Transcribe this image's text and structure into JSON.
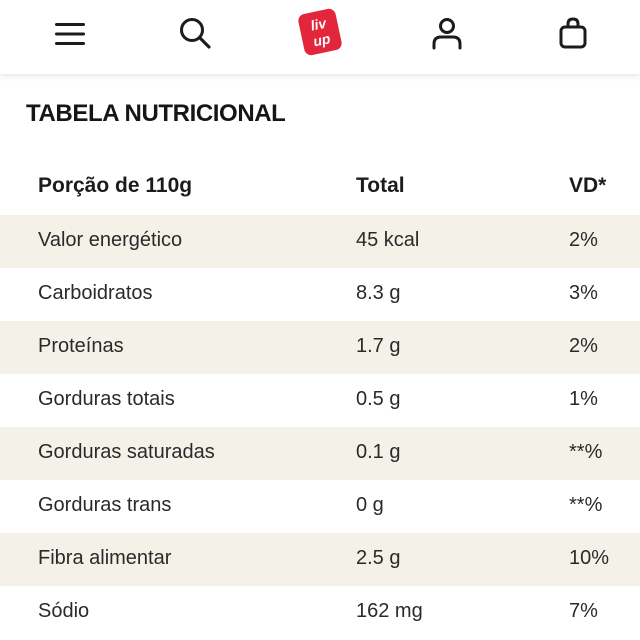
{
  "header": {
    "brand": "Liv Up",
    "brand_color": "#e4263c",
    "icons": [
      "hamburger-menu-icon",
      "search-icon",
      "account-icon",
      "shopping-bag-icon"
    ]
  },
  "section_title": "TABELA NUTRICIONAL",
  "table": {
    "columns": [
      "Porção de 110g",
      "Total",
      "VD*"
    ],
    "rows": [
      {
        "name": "Valor energético",
        "total": "45 kcal",
        "vd": "2%"
      },
      {
        "name": "Carboidratos",
        "total": "8.3 g",
        "vd": "3%"
      },
      {
        "name": "Proteínas",
        "total": "1.7 g",
        "vd": "2%"
      },
      {
        "name": "Gorduras totais",
        "total": "0.5 g",
        "vd": "1%"
      },
      {
        "name": "Gorduras saturadas",
        "total": "0.1 g",
        "vd": "**%"
      },
      {
        "name": "Gorduras trans",
        "total": "0 g",
        "vd": "**%"
      },
      {
        "name": "Fibra alimentar",
        "total": "2.5 g",
        "vd": "10%"
      },
      {
        "name": "Sódio",
        "total": "162 mg",
        "vd": "7%"
      }
    ],
    "stripe_color": "#f4f1e8"
  }
}
